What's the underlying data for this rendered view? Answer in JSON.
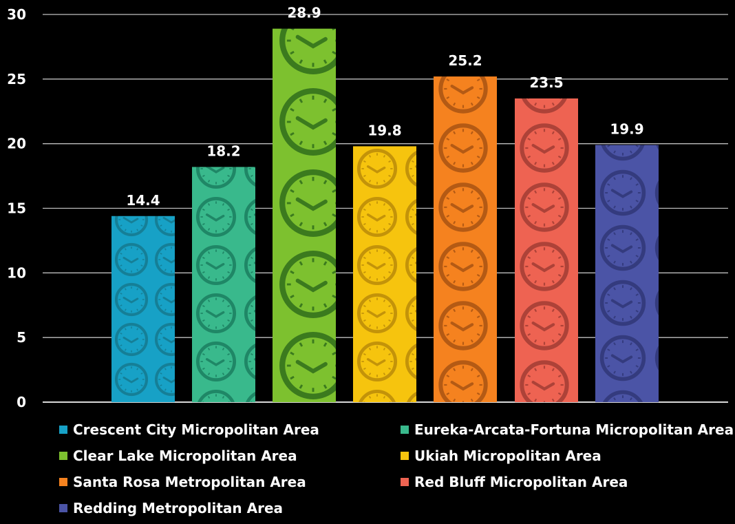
{
  "chart_data": {
    "type": "bar",
    "categories": [
      "Crescent City Micropolitan Area",
      "Eureka-Arcata-Fortuna Micropolitan Area",
      "Clear Lake Micropolitan Area",
      "Ukiah Micropolitan Area",
      "Santa Rosa Metropolitan Area",
      "Red Bluff Micropolitan Area",
      "Redding Metropolitan Area"
    ],
    "values": [
      14.4,
      18.2,
      28.9,
      19.8,
      25.2,
      23.5,
      19.9
    ],
    "value_labels": [
      "14.4",
      "18.2",
      "28.9",
      "19.8",
      "25.2",
      "23.5",
      "19.9"
    ],
    "colors": [
      "#17a1c6",
      "#39b98c",
      "#7dc12f",
      "#f6c40e",
      "#f5821f",
      "#ee6352",
      "#4b54a6"
    ],
    "icon_colors": [
      "#157f97",
      "#1f8766",
      "#3b7a1e",
      "#c39309",
      "#b45a14",
      "#ad4238",
      "#343b7e"
    ],
    "bar_icon": "clock-icon",
    "ylim": [
      0,
      30
    ],
    "yticks": [
      0,
      5,
      10,
      15,
      20,
      25,
      30
    ],
    "ytick_labels": [
      "0",
      "5",
      "10",
      "15",
      "20",
      "25",
      "30"
    ],
    "grid": true,
    "legend_position": "bottom",
    "title": "",
    "xlabel": "",
    "ylabel": ""
  }
}
